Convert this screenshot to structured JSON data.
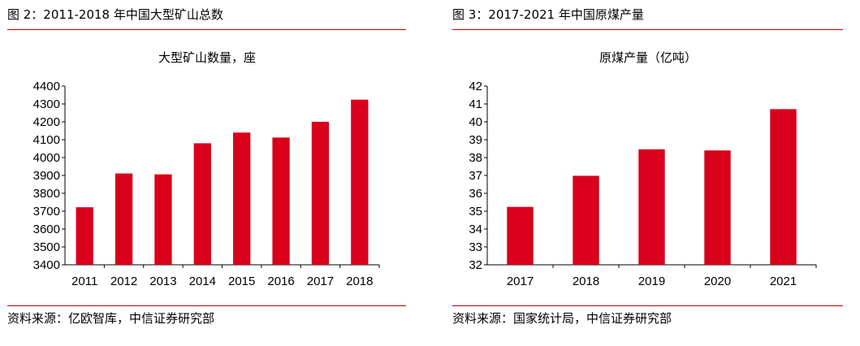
{
  "panels": [
    {
      "figure_title": "图 2：2011-2018 年中国大型矿山总数",
      "source": "资料来源：亿欧智库，中信证券研究部"
    },
    {
      "figure_title": "图 3：2017-2021 年中国原煤产量",
      "source": "资料来源：国家统计局，中信证券研究部"
    }
  ],
  "colors": {
    "bar": "#d9001b",
    "rule": "#c00000",
    "axis": "#000000"
  },
  "chart_data": [
    {
      "type": "bar",
      "title": "大型矿山数量，座",
      "xlabel": "",
      "ylabel": "",
      "categories": [
        "2011",
        "2012",
        "2013",
        "2014",
        "2015",
        "2016",
        "2017",
        "2018"
      ],
      "values": [
        3722,
        3911,
        3906,
        4080,
        4140,
        4112,
        4200,
        4324
      ],
      "ylim": [
        3400,
        4400
      ],
      "yticks": [
        3400,
        3500,
        3600,
        3700,
        3800,
        3900,
        4000,
        4100,
        4200,
        4300,
        4400
      ],
      "grid": false,
      "legend": "none"
    },
    {
      "type": "bar",
      "title": "原煤产量（亿吨）",
      "xlabel": "",
      "ylabel": "",
      "categories": [
        "2017",
        "2018",
        "2019",
        "2020",
        "2021"
      ],
      "values": [
        35.24,
        36.98,
        38.46,
        38.4,
        40.71
      ],
      "ylim": [
        32,
        42
      ],
      "yticks": [
        32,
        33,
        34,
        35,
        36,
        37,
        38,
        39,
        40,
        41,
        42
      ],
      "grid": false,
      "legend": "none"
    }
  ]
}
